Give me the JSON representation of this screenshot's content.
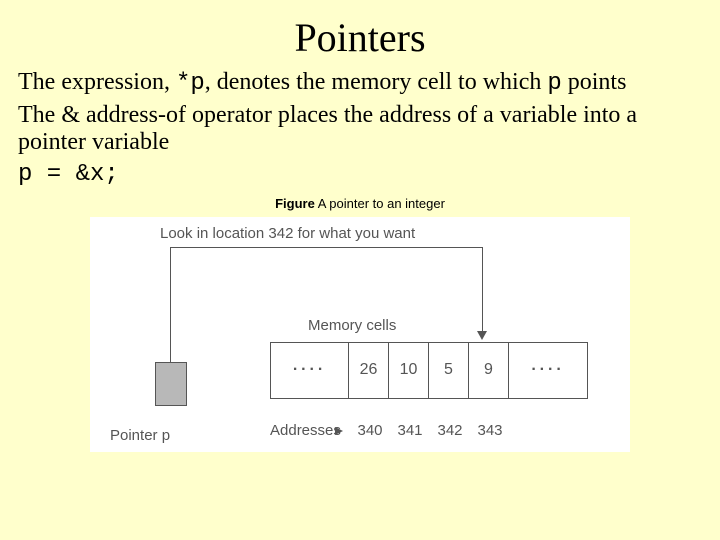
{
  "title": "Pointers",
  "para1_a": "The expression, ",
  "para1_code": "*p",
  "para1_b": ", denotes the memory cell to which ",
  "para1_code2": "p",
  "para1_c": " points",
  "para2": "The & address-of operator places the address of a variable into a pointer variable",
  "code_line": "p = &x;",
  "caption_bold": "Figure",
  "caption_rest": "  A pointer to an integer",
  "figure": {
    "look_label": "Look in location 342 for what you want",
    "mem_label": "Memory cells",
    "pointer_label": "Pointer p",
    "addresses_label": "Addresses",
    "cells": [
      "····",
      "26",
      "10",
      "5",
      "9",
      "····"
    ],
    "addresses": [
      "340",
      "341",
      "342",
      "343"
    ],
    "colors": {
      "page_bg": "#ffffcc",
      "figure_bg": "#ffffff",
      "line": "#555555",
      "pointer_fill": "#b8b8b8"
    }
  }
}
